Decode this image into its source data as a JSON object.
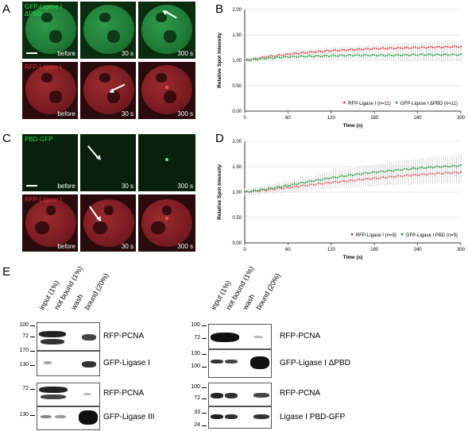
{
  "panel_labels": {
    "a": "A",
    "b": "B",
    "c": "C",
    "d": "D",
    "e": "E"
  },
  "microscopy": {
    "a_green_label_line1": "GFP-Ligase I",
    "a_green_label_line2": "ΔPBD",
    "a_red_label": "RFP-Ligase I",
    "c_green_label": "PBD-GFP",
    "c_red_label": "RFP-Ligase I",
    "time_before": "before",
    "time_30": "30 s",
    "time_300": "300 s",
    "green_color": "#2bd44a",
    "red_color": "#e0303a"
  },
  "chart_data": [
    {
      "type": "line",
      "panel": "B",
      "xlabel": "Time (s)",
      "ylabel": "Relative Spot Intensity",
      "xlim": [
        0,
        300
      ],
      "ylim": [
        0,
        2
      ],
      "xticks": [
        0,
        60,
        120,
        180,
        240,
        300
      ],
      "yticks": [
        "0.00",
        "0.50",
        "1.00",
        "1.50",
        "2.00"
      ],
      "series": [
        {
          "name": "RFP-Ligase I (n=11)",
          "color": "#e0303a",
          "x": [
            0,
            30,
            60,
            90,
            120,
            150,
            180,
            210,
            240,
            270,
            300
          ],
          "y": [
            1.0,
            1.07,
            1.12,
            1.16,
            1.19,
            1.21,
            1.23,
            1.24,
            1.25,
            1.26,
            1.27
          ]
        },
        {
          "name": "GFP-Ligase I ΔPBD (n=11)",
          "color": "#1a9a3a",
          "x": [
            0,
            30,
            60,
            90,
            120,
            150,
            180,
            210,
            240,
            270,
            300
          ],
          "y": [
            1.0,
            1.04,
            1.07,
            1.08,
            1.09,
            1.1,
            1.1,
            1.1,
            1.11,
            1.11,
            1.11
          ]
        }
      ]
    },
    {
      "type": "line",
      "panel": "D",
      "xlabel": "Time (s)",
      "ylabel": "Relative Spot Intensity",
      "xlim": [
        0,
        300
      ],
      "ylim": [
        0,
        2
      ],
      "xticks": [
        0,
        60,
        120,
        180,
        240,
        300
      ],
      "yticks": [
        "0.00",
        "0.50",
        "1.00",
        "1.50",
        "2.00"
      ],
      "series": [
        {
          "name": "RFP-Ligase I (n=9)",
          "color": "#e0303a",
          "x": [
            0,
            30,
            60,
            90,
            120,
            150,
            180,
            210,
            240,
            270,
            300
          ],
          "y": [
            1.0,
            1.04,
            1.09,
            1.14,
            1.19,
            1.23,
            1.27,
            1.31,
            1.34,
            1.37,
            1.39
          ]
        },
        {
          "name": "GFP-Ligase I PBD (n=9)",
          "color": "#1a9a3a",
          "x": [
            0,
            30,
            60,
            90,
            120,
            150,
            180,
            210,
            240,
            270,
            300
          ],
          "y": [
            1.0,
            1.06,
            1.13,
            1.21,
            1.28,
            1.34,
            1.39,
            1.43,
            1.47,
            1.5,
            1.52
          ]
        }
      ]
    }
  ],
  "blots": {
    "lanes": [
      "input (1%)",
      "not bound (1%)",
      "wash",
      "bound (20%)"
    ],
    "left": [
      {
        "label": "RFP-PCNA",
        "mw": [
          "100",
          "72"
        ]
      },
      {
        "label": "GFP-Ligase I",
        "mw": [
          "170",
          "130"
        ]
      },
      {
        "label": "RFP-PCNA",
        "mw": [
          "72"
        ]
      },
      {
        "label": "GFP-Ligase III",
        "mw": [
          "130"
        ]
      }
    ],
    "right": [
      {
        "label": "RFP-PCNA",
        "mw": [
          "100",
          "72"
        ]
      },
      {
        "label": "GFP-Ligase I ΔPBD",
        "mw": [
          "130",
          "100"
        ]
      },
      {
        "label": "RFP-PCNA",
        "mw": [
          "100",
          "72"
        ]
      },
      {
        "label": "Ligase I PBD-GFP",
        "mw": [
          "33",
          "24"
        ]
      }
    ]
  }
}
